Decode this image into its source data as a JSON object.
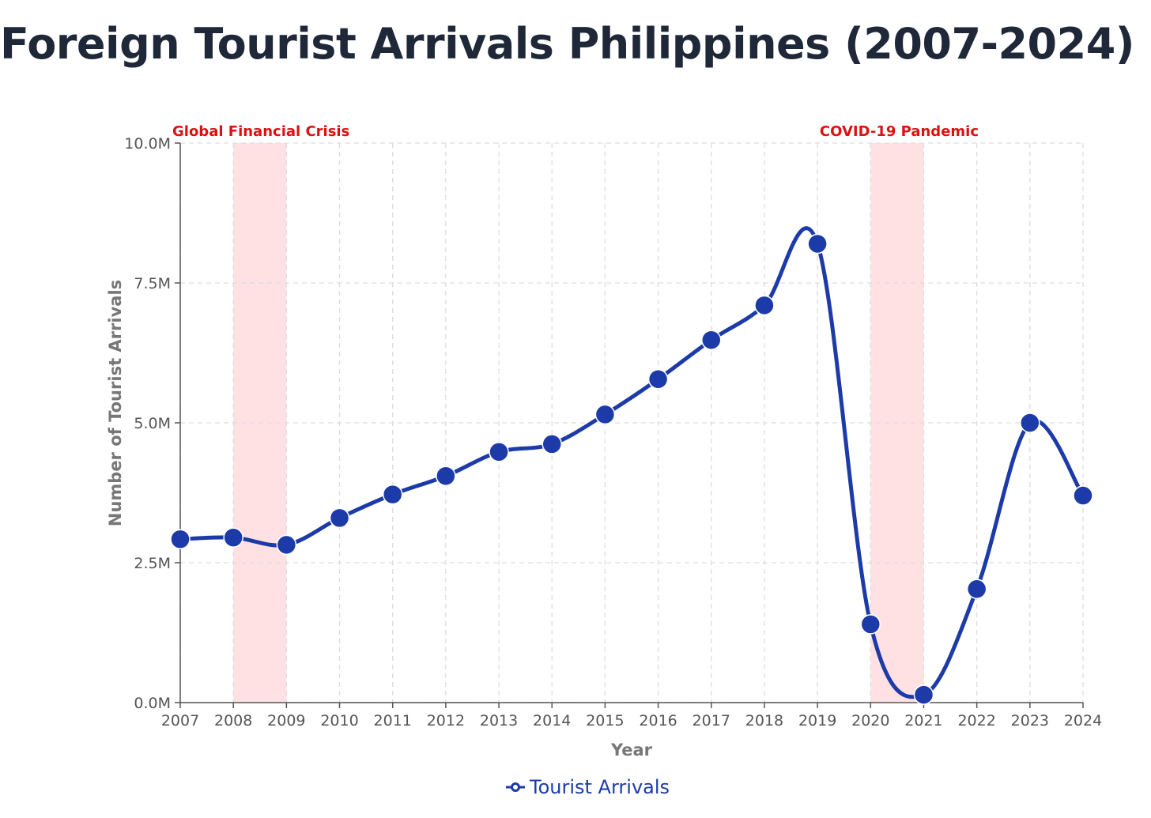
{
  "title": "Foreign Tourist Arrivals Philippines (2007-2024)",
  "colors": {
    "line": "#1d3ba8",
    "band_fill": "#ffe0e3",
    "band_label": "#dd1111",
    "grid": "#dddddd",
    "axis": "#555555"
  },
  "chart_data": {
    "type": "line",
    "title": "Foreign Tourist Arrivals Philippines (2007-2024)",
    "xlabel": "Year",
    "ylabel": "Number of Tourist Arrivals",
    "x": [
      "2007",
      "2008",
      "2009",
      "2010",
      "2011",
      "2012",
      "2013",
      "2014",
      "2015",
      "2016",
      "2017",
      "2018",
      "2019",
      "2020",
      "2021",
      "2022",
      "2023",
      "2024"
    ],
    "series": [
      {
        "name": "Tourist Arrivals",
        "values": [
          2.92,
          2.95,
          2.82,
          3.3,
          3.72,
          4.05,
          4.48,
          4.62,
          5.15,
          5.78,
          6.48,
          7.1,
          8.2,
          1.4,
          0.14,
          2.03,
          5.0,
          3.7
        ]
      }
    ],
    "ylim": [
      0,
      10
    ],
    "yticks": [
      0,
      2.5,
      5,
      7.5,
      10
    ],
    "ytick_labels": [
      "0.0M",
      "2.5M",
      "5.0M",
      "7.5M",
      "10.0M"
    ],
    "grid": true,
    "legend_position": "bottom-center",
    "bands": [
      {
        "label": "Global Financial Crisis",
        "x_start": "2008",
        "x_end": "2009"
      },
      {
        "label": "COVID-19 Pandemic",
        "x_start": "2020",
        "x_end": "2021"
      }
    ]
  }
}
